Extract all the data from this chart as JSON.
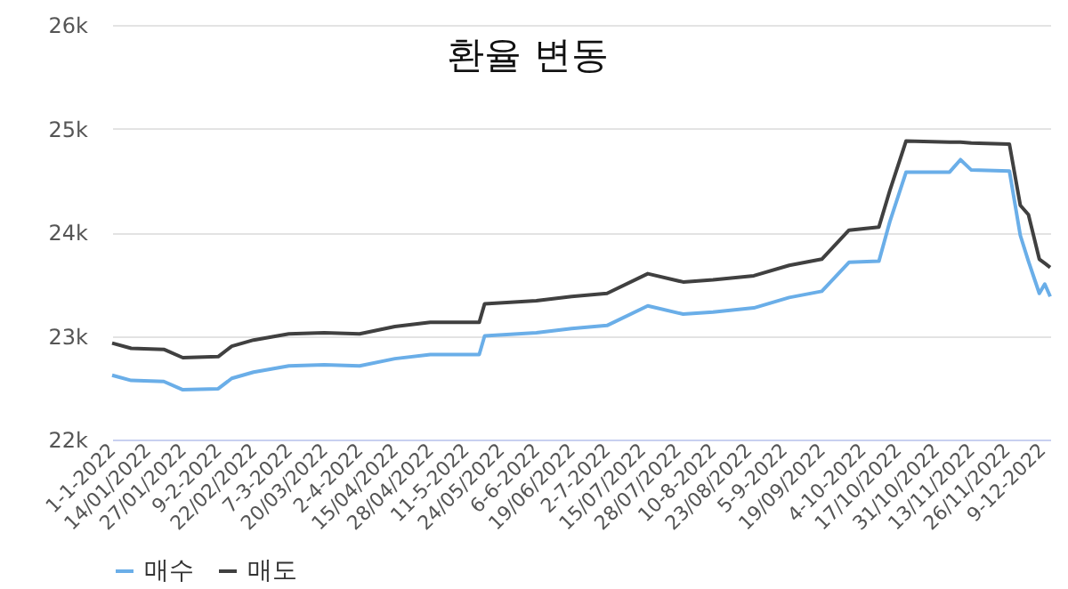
{
  "chart_data": {
    "type": "line",
    "title": "환율 변동",
    "x": [
      "2022-01-01",
      "2022-01-08",
      "2022-01-20",
      "2022-01-27",
      "2022-02-09",
      "2022-02-14",
      "2022-02-22",
      "2022-03-07",
      "2022-03-20",
      "2022-04-02",
      "2022-04-15",
      "2022-04-28",
      "2022-05-16",
      "2022-05-18",
      "2022-06-06",
      "2022-06-19",
      "2022-07-02",
      "2022-07-17",
      "2022-07-30",
      "2022-08-10",
      "2022-08-25",
      "2022-09-07",
      "2022-09-19",
      "2022-09-29",
      "2022-10-10",
      "2022-10-14",
      "2022-10-20",
      "2022-11-05",
      "2022-11-09",
      "2022-11-13",
      "2022-11-27",
      "2022-12-01",
      "2022-12-04",
      "2022-12-08",
      "2022-12-10",
      "2022-12-12"
    ],
    "series": [
      {
        "name": "매수",
        "color": "#6aaee8",
        "values": [
          22620,
          22570,
          22560,
          22480,
          22490,
          22590,
          22650,
          22710,
          22720,
          22710,
          22780,
          22820,
          22820,
          23000,
          23030,
          23070,
          23100,
          23290,
          23210,
          23230,
          23270,
          23370,
          23430,
          23710,
          23720,
          24100,
          24580,
          24580,
          24700,
          24600,
          24590,
          23970,
          23720,
          23410,
          23500,
          23380
        ]
      },
      {
        "name": "매도",
        "color": "#404040",
        "values": [
          22930,
          22880,
          22870,
          22790,
          22800,
          22900,
          22960,
          23020,
          23030,
          23020,
          23090,
          23130,
          23130,
          23310,
          23340,
          23380,
          23410,
          23600,
          23520,
          23540,
          23580,
          23680,
          23740,
          24020,
          24050,
          24400,
          24880,
          24870,
          24870,
          24860,
          24850,
          24260,
          24170,
          23740,
          23700,
          23660
        ]
      }
    ],
    "xlim": [
      "2022-01-01",
      "2022-12-12"
    ],
    "xticks": [
      {
        "value": "2022-01-01",
        "label": "1-1-2022"
      },
      {
        "value": "2022-01-14",
        "label": "14/01/2022"
      },
      {
        "value": "2022-01-27",
        "label": "27/01/2022"
      },
      {
        "value": "2022-02-09",
        "label": "9-2-2022"
      },
      {
        "value": "2022-02-22",
        "label": "22/02/2022"
      },
      {
        "value": "2022-03-07",
        "label": "7-3-2022"
      },
      {
        "value": "2022-03-20",
        "label": "20/03/2022"
      },
      {
        "value": "2022-04-02",
        "label": "2-4-2022"
      },
      {
        "value": "2022-04-15",
        "label": "15/04/2022"
      },
      {
        "value": "2022-04-28",
        "label": "28/04/2022"
      },
      {
        "value": "2022-05-11",
        "label": "11-5-2022"
      },
      {
        "value": "2022-05-24",
        "label": "24/05/2022"
      },
      {
        "value": "2022-06-06",
        "label": "6-6-2022"
      },
      {
        "value": "2022-06-19",
        "label": "19/06/2022"
      },
      {
        "value": "2022-07-02",
        "label": "2-7-2022"
      },
      {
        "value": "2022-07-15",
        "label": "15/07/2022"
      },
      {
        "value": "2022-07-28",
        "label": "28/07/2022"
      },
      {
        "value": "2022-08-10",
        "label": "10-8-2022"
      },
      {
        "value": "2022-08-23",
        "label": "23/08/2022"
      },
      {
        "value": "2022-09-05",
        "label": "5-9-2022"
      },
      {
        "value": "2022-09-19",
        "label": "19/09/2022"
      },
      {
        "value": "2022-10-04",
        "label": "4-10-2022"
      },
      {
        "value": "2022-10-17",
        "label": "17/10/2022"
      },
      {
        "value": "2022-10-31",
        "label": "31/10/2022"
      },
      {
        "value": "2022-11-13",
        "label": "13/11/2022"
      },
      {
        "value": "2022-11-26",
        "label": "26/11/2022"
      },
      {
        "value": "2022-12-09",
        "label": "9-12-2022"
      }
    ],
    "ylim": [
      22000,
      26000
    ],
    "yticks": [
      {
        "value": 22000,
        "label": "22k"
      },
      {
        "value": 23000,
        "label": "23k"
      },
      {
        "value": 24000,
        "label": "24k"
      },
      {
        "value": 25000,
        "label": "25k"
      },
      {
        "value": 26000,
        "label": "26k"
      }
    ],
    "grid": "y",
    "legend": "bottom"
  }
}
